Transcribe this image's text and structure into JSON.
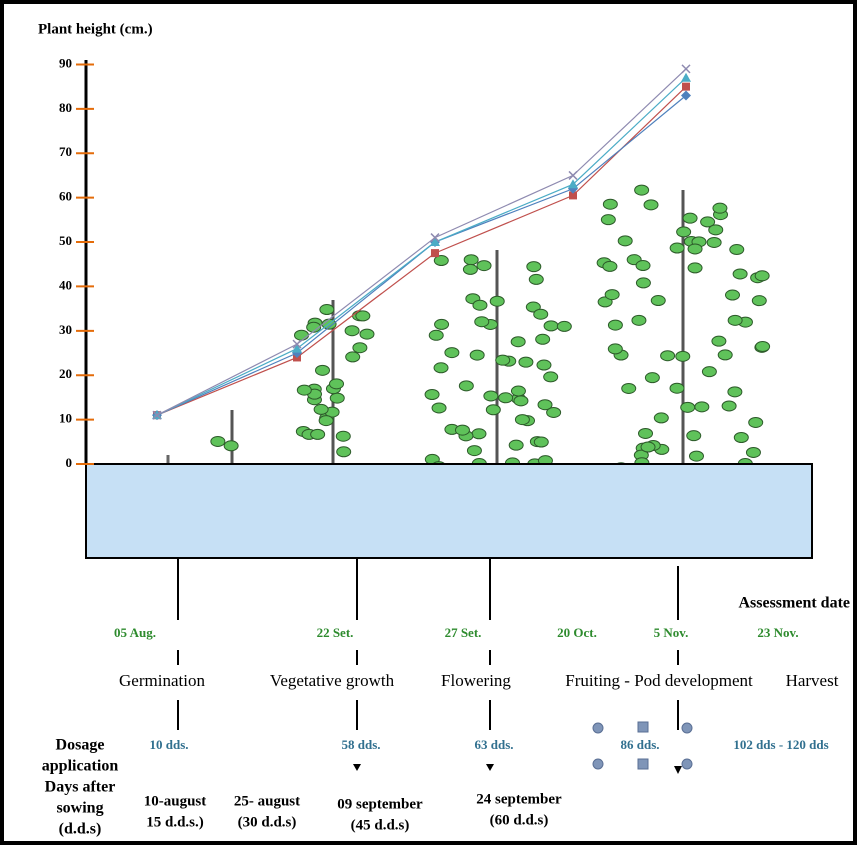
{
  "chart_data": {
    "type": "line",
    "y_label": "Plant height (cm.)",
    "categories": [
      null,
      null,
      null,
      null,
      null
    ],
    "ylim": [
      0,
      91
    ],
    "yticks": [
      0,
      10,
      20,
      30,
      40,
      50,
      60,
      70,
      80,
      90
    ],
    "series": [
      {
        "color": "#c0504d",
        "marker": "square",
        "values": [
          11,
          24,
          47.5,
          60.5,
          85
        ]
      },
      {
        "color": "#4f81bd",
        "marker": "diamond",
        "values": [
          11,
          25,
          50,
          62,
          83
        ]
      },
      {
        "color": "#4bacc6",
        "marker": "triangle",
        "values": [
          11,
          26,
          50,
          63,
          87
        ]
      },
      {
        "color": "#8e8ab0",
        "marker": "x",
        "values": [
          11,
          27,
          51,
          65,
          89
        ]
      }
    ],
    "assessment_label": "Assessment date",
    "assessment_dates": [
      "05 Aug.",
      "22 Set.",
      "27 Set.",
      "20 Oct.",
      "5 Nov.",
      "23 Nov."
    ],
    "stages": [
      "Germination",
      "Vegetative growth",
      "Flowering",
      "Fruiting - Pod development",
      "Harvest"
    ],
    "dosage_dds": [
      "10 dds.",
      "58 dds.",
      "63 dds.",
      "86 dds.",
      "102 dds - 120 dds"
    ],
    "dosage_label": [
      "Dosage",
      "application",
      "Days after",
      "sowing",
      "(d.d.s)"
    ],
    "sowing_dates": [
      [
        "10-august",
        "15 d.d.s.)"
      ],
      [
        "25- august",
        "(30 d.d.s)"
      ],
      [
        "09  september",
        "(45 d.d.s)"
      ],
      [
        "24 september",
        "(60 d.d.s)"
      ]
    ]
  }
}
